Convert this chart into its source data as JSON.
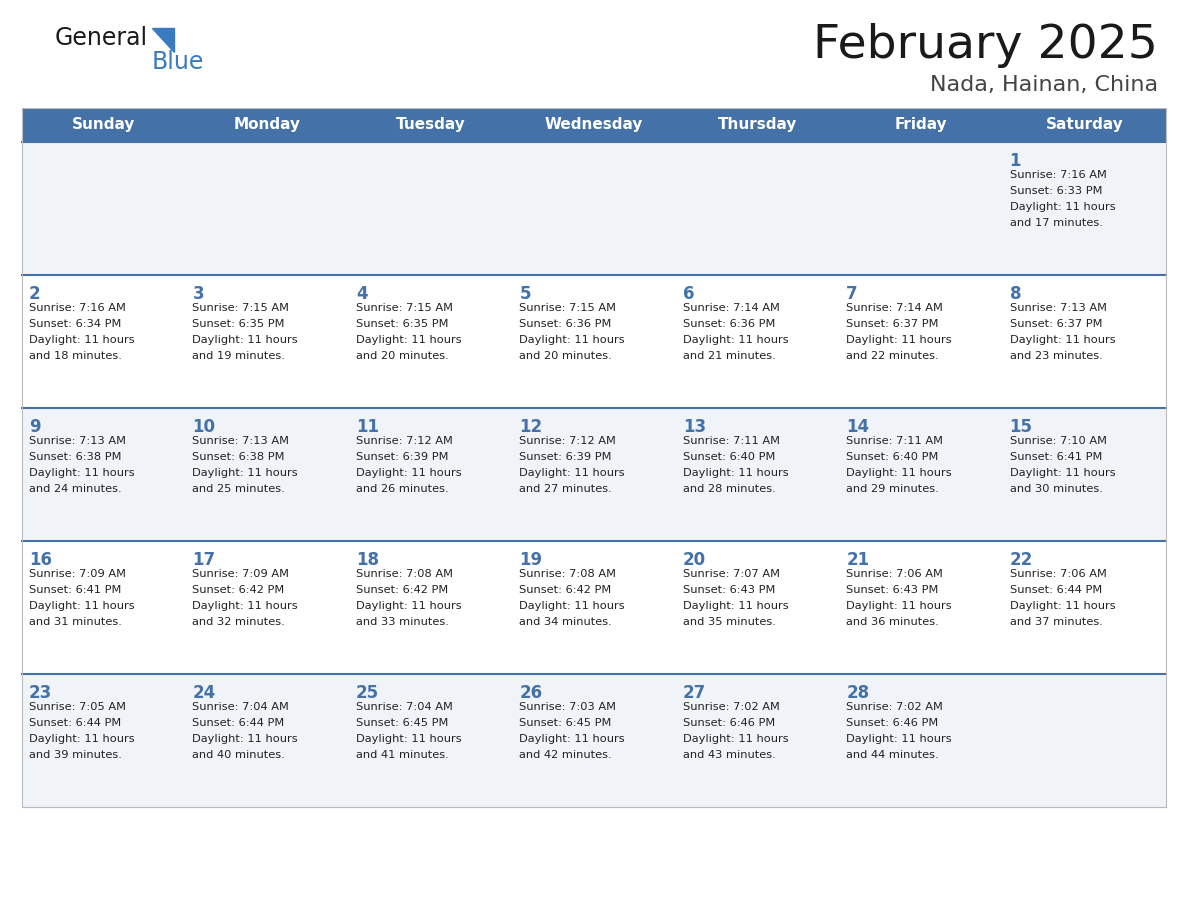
{
  "title": "February 2025",
  "subtitle": "Nada, Hainan, China",
  "days_of_week": [
    "Sunday",
    "Monday",
    "Tuesday",
    "Wednesday",
    "Thursday",
    "Friday",
    "Saturday"
  ],
  "header_bg": "#4472a8",
  "header_text": "#ffffff",
  "row_bg_odd": "#f0f4f8",
  "row_bg_even": "#ffffff",
  "separator_color": "#4472a8",
  "day_number_color": "#4472a8",
  "cell_text_color": "#222222",
  "background_color": "#ffffff",
  "calendar": [
    [
      null,
      null,
      null,
      null,
      null,
      null,
      {
        "day": 1,
        "sunrise": "7:16 AM",
        "sunset": "6:33 PM",
        "daylight": "11 hours and 17 minutes."
      }
    ],
    [
      {
        "day": 2,
        "sunrise": "7:16 AM",
        "sunset": "6:34 PM",
        "daylight": "11 hours and 18 minutes."
      },
      {
        "day": 3,
        "sunrise": "7:15 AM",
        "sunset": "6:35 PM",
        "daylight": "11 hours and 19 minutes."
      },
      {
        "day": 4,
        "sunrise": "7:15 AM",
        "sunset": "6:35 PM",
        "daylight": "11 hours and 20 minutes."
      },
      {
        "day": 5,
        "sunrise": "7:15 AM",
        "sunset": "6:36 PM",
        "daylight": "11 hours and 20 minutes."
      },
      {
        "day": 6,
        "sunrise": "7:14 AM",
        "sunset": "6:36 PM",
        "daylight": "11 hours and 21 minutes."
      },
      {
        "day": 7,
        "sunrise": "7:14 AM",
        "sunset": "6:37 PM",
        "daylight": "11 hours and 22 minutes."
      },
      {
        "day": 8,
        "sunrise": "7:13 AM",
        "sunset": "6:37 PM",
        "daylight": "11 hours and 23 minutes."
      }
    ],
    [
      {
        "day": 9,
        "sunrise": "7:13 AM",
        "sunset": "6:38 PM",
        "daylight": "11 hours and 24 minutes."
      },
      {
        "day": 10,
        "sunrise": "7:13 AM",
        "sunset": "6:38 PM",
        "daylight": "11 hours and 25 minutes."
      },
      {
        "day": 11,
        "sunrise": "7:12 AM",
        "sunset": "6:39 PM",
        "daylight": "11 hours and 26 minutes."
      },
      {
        "day": 12,
        "sunrise": "7:12 AM",
        "sunset": "6:39 PM",
        "daylight": "11 hours and 27 minutes."
      },
      {
        "day": 13,
        "sunrise": "7:11 AM",
        "sunset": "6:40 PM",
        "daylight": "11 hours and 28 minutes."
      },
      {
        "day": 14,
        "sunrise": "7:11 AM",
        "sunset": "6:40 PM",
        "daylight": "11 hours and 29 minutes."
      },
      {
        "day": 15,
        "sunrise": "7:10 AM",
        "sunset": "6:41 PM",
        "daylight": "11 hours and 30 minutes."
      }
    ],
    [
      {
        "day": 16,
        "sunrise": "7:09 AM",
        "sunset": "6:41 PM",
        "daylight": "11 hours and 31 minutes."
      },
      {
        "day": 17,
        "sunrise": "7:09 AM",
        "sunset": "6:42 PM",
        "daylight": "11 hours and 32 minutes."
      },
      {
        "day": 18,
        "sunrise": "7:08 AM",
        "sunset": "6:42 PM",
        "daylight": "11 hours and 33 minutes."
      },
      {
        "day": 19,
        "sunrise": "7:08 AM",
        "sunset": "6:42 PM",
        "daylight": "11 hours and 34 minutes."
      },
      {
        "day": 20,
        "sunrise": "7:07 AM",
        "sunset": "6:43 PM",
        "daylight": "11 hours and 35 minutes."
      },
      {
        "day": 21,
        "sunrise": "7:06 AM",
        "sunset": "6:43 PM",
        "daylight": "11 hours and 36 minutes."
      },
      {
        "day": 22,
        "sunrise": "7:06 AM",
        "sunset": "6:44 PM",
        "daylight": "11 hours and 37 minutes."
      }
    ],
    [
      {
        "day": 23,
        "sunrise": "7:05 AM",
        "sunset": "6:44 PM",
        "daylight": "11 hours and 39 minutes."
      },
      {
        "day": 24,
        "sunrise": "7:04 AM",
        "sunset": "6:44 PM",
        "daylight": "11 hours and 40 minutes."
      },
      {
        "day": 25,
        "sunrise": "7:04 AM",
        "sunset": "6:45 PM",
        "daylight": "11 hours and 41 minutes."
      },
      {
        "day": 26,
        "sunrise": "7:03 AM",
        "sunset": "6:45 PM",
        "daylight": "11 hours and 42 minutes."
      },
      {
        "day": 27,
        "sunrise": "7:02 AM",
        "sunset": "6:46 PM",
        "daylight": "11 hours and 43 minutes."
      },
      {
        "day": 28,
        "sunrise": "7:02 AM",
        "sunset": "6:46 PM",
        "daylight": "11 hours and 44 minutes."
      },
      null
    ]
  ]
}
